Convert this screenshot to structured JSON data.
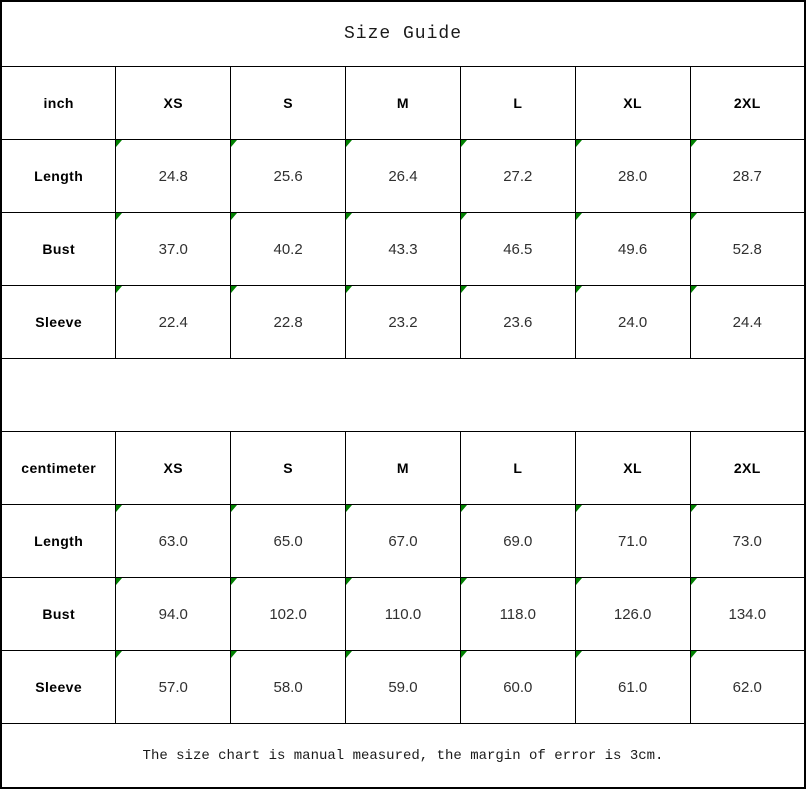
{
  "page": {
    "title": "Size Guide",
    "footer_note": "The size chart is manual measured, the margin of error is 3cm."
  },
  "colors": {
    "border": "#000000",
    "flag_green": "#008000",
    "value_text": "#303030"
  },
  "size_tables": [
    {
      "unit_label": "inch",
      "size_headers": [
        "XS",
        "S",
        "M",
        "L",
        "XL",
        "2XL"
      ],
      "rows": [
        {
          "label": "Length",
          "values": [
            "24.8",
            "25.6",
            "26.4",
            "27.2",
            "28.0",
            "28.7"
          ]
        },
        {
          "label": "Bust",
          "values": [
            "37.0",
            "40.2",
            "43.3",
            "46.5",
            "49.6",
            "52.8"
          ]
        },
        {
          "label": "Sleeve",
          "values": [
            "22.4",
            "22.8",
            "23.2",
            "23.6",
            "24.0",
            "24.4"
          ]
        }
      ]
    },
    {
      "unit_label": "centimeter",
      "size_headers": [
        "XS",
        "S",
        "M",
        "L",
        "XL",
        "2XL"
      ],
      "rows": [
        {
          "label": "Length",
          "values": [
            "63.0",
            "65.0",
            "67.0",
            "69.0",
            "71.0",
            "73.0"
          ]
        },
        {
          "label": "Bust",
          "values": [
            "94.0",
            "102.0",
            "110.0",
            "118.0",
            "126.0",
            "134.0"
          ]
        },
        {
          "label": "Sleeve",
          "values": [
            "57.0",
            "58.0",
            "59.0",
            "60.0",
            "61.0",
            "62.0"
          ]
        }
      ]
    }
  ]
}
